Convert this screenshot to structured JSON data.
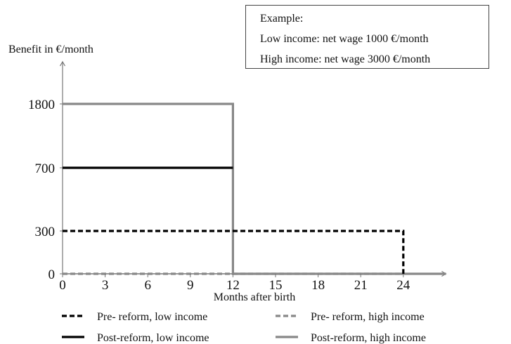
{
  "chart_data": {
    "type": "line",
    "ylabel": "Benefit in €/month",
    "xlabel": "Months after birth",
    "x_ticks": [
      0,
      3,
      6,
      9,
      12,
      15,
      18,
      21,
      24
    ],
    "y_ticks": [
      0,
      300,
      700,
      1800
    ],
    "xlim": [
      0,
      27
    ],
    "ylim": [
      0,
      1800
    ],
    "grid": false,
    "legend_position": "bottom",
    "series": [
      {
        "name": "Pre- reform, low income",
        "style": "dashed",
        "color": "#000000",
        "points": [
          [
            0,
            300
          ],
          [
            24,
            300
          ],
          [
            24,
            0
          ]
        ]
      },
      {
        "name": "Pre- reform, high income",
        "style": "dashed",
        "color": "#888888",
        "points": [
          [
            0,
            0
          ],
          [
            24,
            0
          ]
        ]
      },
      {
        "name": "Post-reform, low income",
        "style": "solid",
        "color": "#000000",
        "points": [
          [
            0,
            700
          ],
          [
            12,
            700
          ]
        ]
      },
      {
        "name": "Post-reform, high income",
        "style": "solid",
        "color": "#888888",
        "points": [
          [
            0,
            1800
          ],
          [
            12,
            1800
          ],
          [
            12,
            0
          ],
          [
            27,
            0
          ]
        ]
      }
    ]
  },
  "example_box": {
    "title": "Example:",
    "low_income": "Low income:  net wage 1000 €/month",
    "high_income": "High income:  net wage 3000 €/month"
  }
}
